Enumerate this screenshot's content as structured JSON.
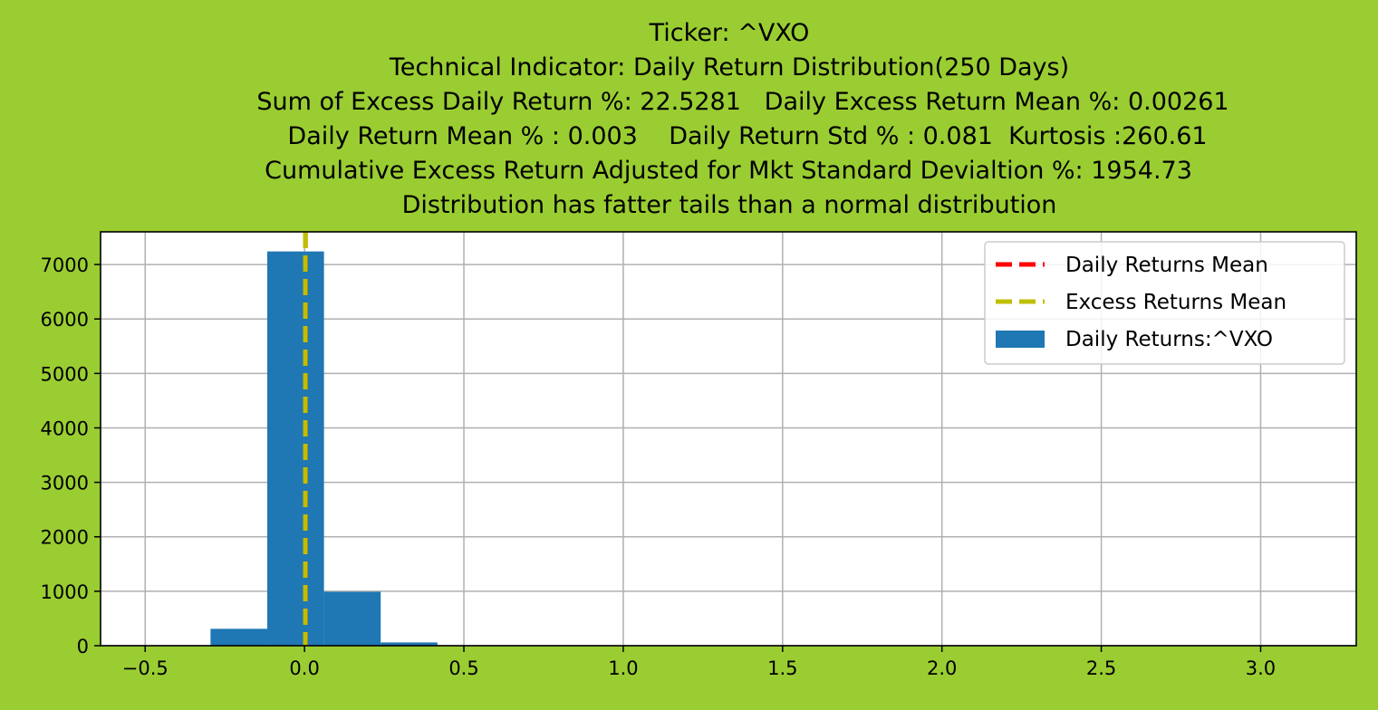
{
  "colors": {
    "figure_bg": "#9acd32",
    "axes_bg": "#ffffff",
    "bar": "#1f77b4",
    "daily_mean_line": "#ff0000",
    "excess_mean_line": "#bfbf00",
    "grid": "#b0b0b0"
  },
  "chart_data": {
    "type": "bar",
    "title_lines": [
      "Ticker: ^VXO",
      "Technical Indicator: Daily Return Distribution(250 Days)",
      "Sum of Excess Daily Return %: 22.5281   Daily Excess Return Mean %: 0.00261",
      "Daily Return Mean % : 0.003    Daily Return Std % : 0.081  Kurtosis :260.61",
      "Cumulative Excess Return Adjusted for Mkt Standard Devialtion %: 1954.73",
      "Distribution has fatter tails than a normal distribution"
    ],
    "xlim": [
      -0.64,
      3.3
    ],
    "ylim": [
      0,
      7600
    ],
    "x_ticks": [
      -0.5,
      0.0,
      0.5,
      1.0,
      1.5,
      2.0,
      2.5,
      3.0
    ],
    "x_tick_labels": [
      "−0.5",
      "0.0",
      "0.5",
      "1.0",
      "1.5",
      "2.0",
      "2.5",
      "3.0"
    ],
    "y_ticks": [
      0,
      1000,
      2000,
      3000,
      4000,
      5000,
      6000,
      7000
    ],
    "y_tick_labels": [
      "0",
      "1000",
      "2000",
      "3000",
      "4000",
      "5000",
      "6000",
      "7000"
    ],
    "grid": true,
    "legend_position": "top-right",
    "histogram": {
      "name": "Daily Returns:^VXO",
      "bin_width": 0.178,
      "bins": [
        {
          "x0": -0.295,
          "count": 310
        },
        {
          "x0": -0.117,
          "count": 7240
        },
        {
          "x0": 0.061,
          "count": 990
        },
        {
          "x0": 0.239,
          "count": 60
        },
        {
          "x0": 0.417,
          "count": 8
        },
        {
          "x0": 0.595,
          "count": 3
        },
        {
          "x0": 0.773,
          "count": 1
        },
        {
          "x0": 0.951,
          "count": 1
        },
        {
          "x0": 1.129,
          "count": 0
        },
        {
          "x0": 1.307,
          "count": 0
        },
        {
          "x0": 1.485,
          "count": 0
        },
        {
          "x0": 1.663,
          "count": 0
        },
        {
          "x0": 1.841,
          "count": 0
        },
        {
          "x0": 2.019,
          "count": 0
        },
        {
          "x0": 2.197,
          "count": 0
        },
        {
          "x0": 2.375,
          "count": 0
        },
        {
          "x0": 2.553,
          "count": 0
        },
        {
          "x0": 2.731,
          "count": 0
        },
        {
          "x0": 2.909,
          "count": 0
        },
        {
          "x0": 3.087,
          "count": 1
        }
      ]
    },
    "mean_lines": [
      {
        "name": "Daily Returns Mean",
        "x": 0.003,
        "color_key": "daily_mean_line"
      },
      {
        "name": "Excess Returns Mean",
        "x": 0.00261,
        "color_key": "excess_mean_line"
      }
    ],
    "legend": [
      {
        "label": "Daily Returns Mean",
        "kind": "line",
        "color_key": "daily_mean_line"
      },
      {
        "label": "Excess Returns Mean",
        "kind": "line",
        "color_key": "excess_mean_line"
      },
      {
        "label": "Daily Returns:^VXO",
        "kind": "patch",
        "color_key": "bar"
      }
    ]
  }
}
